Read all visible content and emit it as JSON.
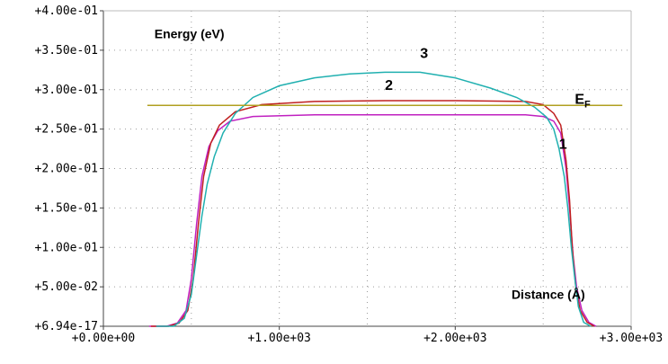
{
  "chart_data": {
    "type": "line",
    "title": "",
    "xlabel": "Distance (Å)",
    "ylabel": "Energy (eV)",
    "xlim": [
      0,
      3000
    ],
    "ylim": [
      0,
      0.4
    ],
    "grid": true,
    "x_ticks": [
      {
        "value": 0,
        "label": "+0.00e+00"
      },
      {
        "value": 1000,
        "label": "+1.00e+03"
      },
      {
        "value": 2000,
        "label": "+2.00e+03"
      },
      {
        "value": 3000,
        "label": "+3.00e+03"
      }
    ],
    "y_ticks": [
      {
        "value": 0,
        "label": "+6.94e-17"
      },
      {
        "value": 0.05,
        "label": "+5.00e-02"
      },
      {
        "value": 0.1,
        "label": "+1.00e-01"
      },
      {
        "value": 0.15,
        "label": "+1.50e-01"
      },
      {
        "value": 0.2,
        "label": "+2.00e-01"
      },
      {
        "value": 0.25,
        "label": "+2.50e-01"
      },
      {
        "value": 0.3,
        "label": "+3.00e-01"
      },
      {
        "value": 0.35,
        "label": "+3.50e-01"
      },
      {
        "value": 0.4,
        "label": "+4.00e-01"
      }
    ],
    "fermi_label": {
      "main": "E",
      "sub": "F"
    },
    "series": [
      {
        "name": "1",
        "color": "#c020c0",
        "points": [
          [
            260,
            0
          ],
          [
            360,
            0
          ],
          [
            420,
            0.004
          ],
          [
            470,
            0.02
          ],
          [
            500,
            0.06
          ],
          [
            530,
            0.13
          ],
          [
            560,
            0.19
          ],
          [
            600,
            0.228
          ],
          [
            650,
            0.248
          ],
          [
            720,
            0.26
          ],
          [
            850,
            0.266
          ],
          [
            1200,
            0.268
          ],
          [
            1600,
            0.268
          ],
          [
            2000,
            0.268
          ],
          [
            2400,
            0.268
          ],
          [
            2500,
            0.266
          ],
          [
            2560,
            0.26
          ],
          [
            2600,
            0.245
          ],
          [
            2630,
            0.2
          ],
          [
            2650,
            0.15
          ],
          [
            2670,
            0.09
          ],
          [
            2690,
            0.05
          ],
          [
            2720,
            0.02
          ],
          [
            2760,
            0.005
          ],
          [
            2800,
            0
          ]
        ]
      },
      {
        "name": "2",
        "color": "#c02020",
        "points": [
          [
            270,
            0
          ],
          [
            370,
            0
          ],
          [
            430,
            0.004
          ],
          [
            480,
            0.02
          ],
          [
            510,
            0.06
          ],
          [
            540,
            0.13
          ],
          [
            570,
            0.19
          ],
          [
            610,
            0.232
          ],
          [
            660,
            0.255
          ],
          [
            750,
            0.272
          ],
          [
            900,
            0.281
          ],
          [
            1200,
            0.285
          ],
          [
            1600,
            0.286
          ],
          [
            2000,
            0.286
          ],
          [
            2400,
            0.285
          ],
          [
            2500,
            0.281
          ],
          [
            2560,
            0.27
          ],
          [
            2600,
            0.255
          ],
          [
            2630,
            0.21
          ],
          [
            2650,
            0.16
          ],
          [
            2665,
            0.1
          ],
          [
            2685,
            0.05
          ],
          [
            2710,
            0.02
          ],
          [
            2750,
            0.005
          ],
          [
            2790,
            0
          ]
        ]
      },
      {
        "name": "3",
        "color": "#20b0b0",
        "points": [
          [
            300,
            0
          ],
          [
            400,
            0
          ],
          [
            460,
            0.01
          ],
          [
            500,
            0.04
          ],
          [
            530,
            0.09
          ],
          [
            560,
            0.14
          ],
          [
            590,
            0.18
          ],
          [
            630,
            0.215
          ],
          [
            680,
            0.245
          ],
          [
            750,
            0.27
          ],
          [
            850,
            0.29
          ],
          [
            1000,
            0.305
          ],
          [
            1200,
            0.315
          ],
          [
            1400,
            0.32
          ],
          [
            1600,
            0.322
          ],
          [
            1800,
            0.322
          ],
          [
            2000,
            0.315
          ],
          [
            2200,
            0.302
          ],
          [
            2350,
            0.29
          ],
          [
            2450,
            0.278
          ],
          [
            2520,
            0.265
          ],
          [
            2560,
            0.25
          ],
          [
            2590,
            0.225
          ],
          [
            2620,
            0.19
          ],
          [
            2640,
            0.15
          ],
          [
            2660,
            0.1
          ],
          [
            2680,
            0.06
          ],
          [
            2700,
            0.025
          ],
          [
            2730,
            0.005
          ],
          [
            2770,
            0
          ]
        ]
      },
      {
        "name": "",
        "color": "#b0a020",
        "points": [
          [
            250,
            0.28
          ],
          [
            2950,
            0.28
          ]
        ]
      }
    ],
    "annotations": [
      {
        "text": "Energy (eV)",
        "x": 290,
        "y": 0.365,
        "size": 14
      },
      {
        "text": "3",
        "x": 1800,
        "y": 0.34,
        "size": 16
      },
      {
        "text": "2",
        "x": 1600,
        "y": 0.3,
        "size": 16
      },
      {
        "text": "1",
        "x": 2590,
        "y": 0.225,
        "size": 16
      },
      {
        "text": "Distance (Å)",
        "x": 2320,
        "y": 0.035,
        "size": 14
      }
    ]
  }
}
